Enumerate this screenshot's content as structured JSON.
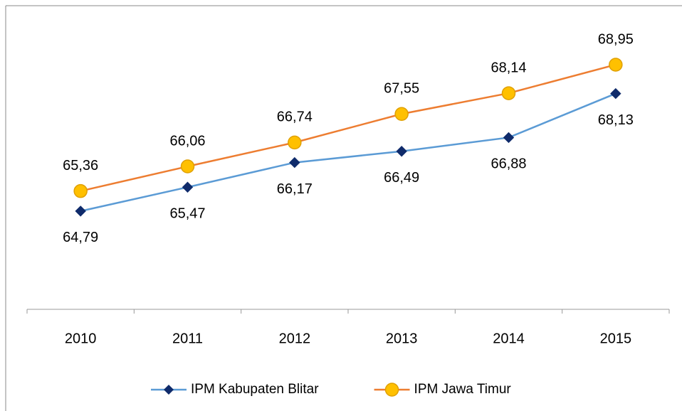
{
  "chart_data": {
    "type": "line",
    "categories": [
      "2010",
      "2011",
      "2012",
      "2013",
      "2014",
      "2015"
    ],
    "series": [
      {
        "name": "IPM Kabupaten Blitar",
        "color": "#5b9bd5",
        "marker_color": "#0f2b6b",
        "marker": "diamond",
        "values": [
          64.79,
          65.47,
          66.17,
          66.49,
          66.88,
          68.13
        ],
        "value_labels": [
          "64,79",
          "65,47",
          "66,17",
          "66,49",
          "66,88",
          "68,13"
        ]
      },
      {
        "name": "IPM Jawa Timur",
        "color": "#ed7d31",
        "marker_color": "#ffc000",
        "marker": "circle",
        "values": [
          65.36,
          66.06,
          66.74,
          67.55,
          68.14,
          68.95
        ],
        "value_labels": [
          "65,36",
          "66,06",
          "66,74",
          "67,55",
          "68,14",
          "68,95"
        ]
      }
    ],
    "ylim": [
      62,
      70
    ],
    "legend": "bottom"
  }
}
